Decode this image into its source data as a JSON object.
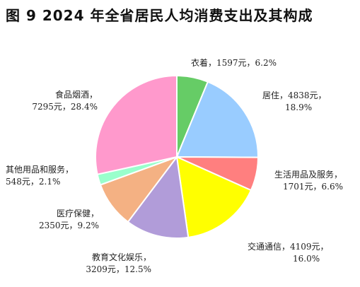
{
  "title": "图 9 2024 年全省居民人均消费支出及其构成",
  "chart_data": {
    "type": "pie",
    "title": "图 9 2024 年全省居民人均消费支出及其构成",
    "start_angle_deg": 90,
    "direction": "clockwise",
    "slices": [
      {
        "name": "衣着",
        "value": 1597,
        "percent": 6.2,
        "color": "#66CC66",
        "line1": "衣着，1597元，6.2%",
        "line2": ""
      },
      {
        "name": "居住",
        "value": 4838,
        "percent": 18.9,
        "color": "#99CCFF",
        "line1": "居住，4838元，",
        "line2": "18.9%"
      },
      {
        "name": "生活用品及服务",
        "value": 1701,
        "percent": 6.6,
        "color": "#FF7F7F",
        "line1": "生活用品及服务，",
        "line2": "1701元，6.6%"
      },
      {
        "name": "交通通信",
        "value": 4109,
        "percent": 16.0,
        "color": "#FFFF00",
        "line1": "交通通信，4109元，",
        "line2": "16.0%"
      },
      {
        "name": "教育文化娱乐",
        "value": 3209,
        "percent": 12.5,
        "color": "#B19CD9",
        "line1": "教育文化娱乐，",
        "line2": "3209元，12.5%"
      },
      {
        "name": "医疗保健",
        "value": 2350,
        "percent": 9.2,
        "color": "#F4B183",
        "line1": "医疗保健，",
        "line2": "2350元，9.2%"
      },
      {
        "name": "其他用品和服务",
        "value": 548,
        "percent": 2.1,
        "color": "#99FFCC",
        "line1": "其他用品和服务，",
        "line2": "548元，2.1%"
      },
      {
        "name": "食品烟酒",
        "value": 7295,
        "percent": 28.4,
        "color": "#FF99CC",
        "line1": "食品烟酒，",
        "line2": "7295元，28.4%"
      }
    ]
  }
}
